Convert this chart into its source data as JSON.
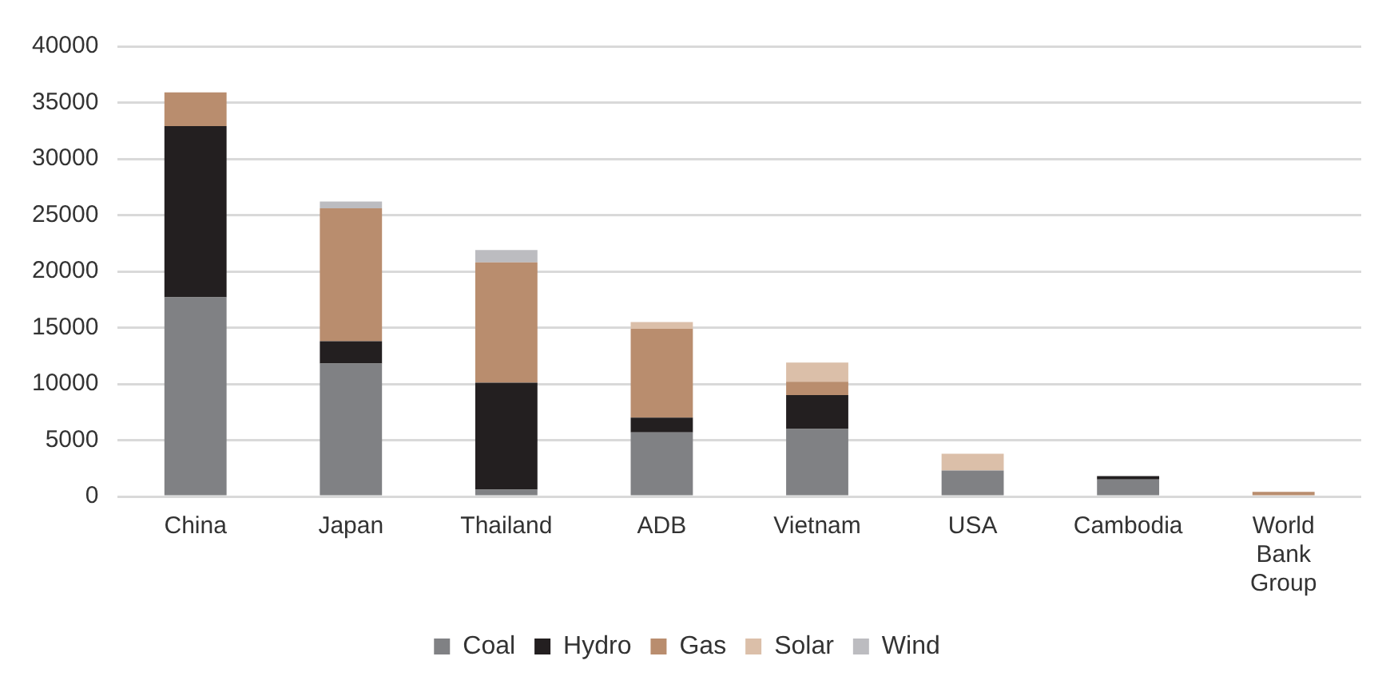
{
  "chart_data": {
    "type": "bar",
    "stacked": true,
    "categories": [
      "China",
      "Japan",
      "Thailand",
      "ADB",
      "Vietnam",
      "USA",
      "Cambodia",
      "World Bank Group"
    ],
    "series": [
      {
        "name": "Coal",
        "color": "#808184",
        "values": [
          17700,
          11800,
          600,
          5700,
          6000,
          2300,
          1500,
          null
        ]
      },
      {
        "name": "Hydro",
        "color": "#231f20",
        "values": [
          15200,
          2000,
          9500,
          1300,
          3000,
          null,
          300,
          null
        ]
      },
      {
        "name": "Gas",
        "color": "#b98d6e",
        "values": [
          3000,
          11800,
          10700,
          7900,
          1200,
          null,
          null,
          400
        ]
      },
      {
        "name": "Solar",
        "color": "#dbbfa9",
        "values": [
          null,
          null,
          null,
          600,
          1700,
          1500,
          null,
          null
        ]
      },
      {
        "name": "Wind",
        "color": "#bcbcc0",
        "values": [
          null,
          600,
          1100,
          null,
          null,
          null,
          null,
          null
        ]
      }
    ],
    "ylim": [
      0,
      40000
    ],
    "yticks": [
      0,
      5000,
      10000,
      15000,
      20000,
      25000,
      30000,
      35000,
      40000
    ],
    "grid": "y",
    "legend": "bottom"
  }
}
